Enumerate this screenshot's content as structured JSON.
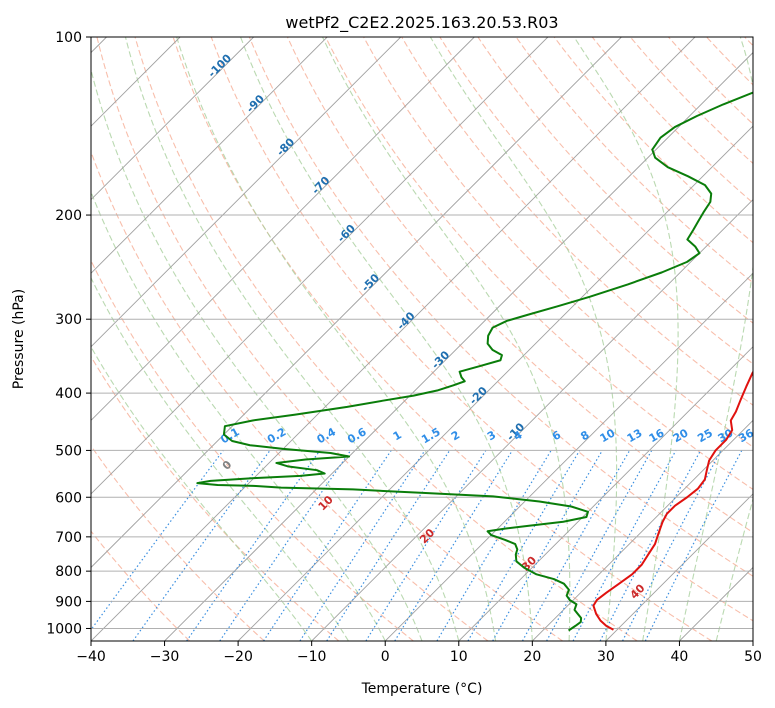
{
  "chart_data": {
    "type": "line",
    "title": "wetPf2_C2E2.2025.163.20.53.R03",
    "xlabel": "Temperature (°C)",
    "ylabel": "Pressure (hPa)",
    "xlim": [
      -40,
      50
    ],
    "ylim": [
      1050,
      100
    ],
    "y_scale": "log",
    "grid": true,
    "x_ticks": [
      "−40",
      "−30",
      "−20",
      "−10",
      "0",
      "10",
      "20",
      "30",
      "40",
      "50"
    ],
    "y_ticks": [
      "100",
      "200",
      "300",
      "400",
      "500",
      "600",
      "700",
      "800",
      "900",
      "1000"
    ],
    "x_tick_values": [
      -40,
      -30,
      -20,
      -10,
      0,
      10,
      20,
      30,
      40,
      50
    ],
    "y_tick_values": [
      100,
      200,
      300,
      400,
      500,
      600,
      700,
      800,
      900,
      1000
    ],
    "skew_deg": 45,
    "colors": {
      "temperature": "#e0120f",
      "dewpoint": "#0a7d0a",
      "isotherm": "#a0a0a0",
      "dry_adiabat": "#f5a88f",
      "moist_adiabat": "#a9cf9e",
      "mixing_ratio": "#3b8fe0",
      "isotherm_label": "#1f6fb0",
      "dry_adiabat_label": "#cc2a2a",
      "mixing_label": "#2f8ee8",
      "zero_label": "#808080"
    },
    "series": [
      {
        "key": "temperature",
        "points": [
          [
            29.5,
            1005
          ],
          [
            28.0,
            990
          ],
          [
            26.5,
            970
          ],
          [
            25.0,
            945
          ],
          [
            23.5,
            915
          ],
          [
            23.2,
            895
          ],
          [
            23.5,
            870
          ],
          [
            24.0,
            840
          ],
          [
            24.5,
            810
          ],
          [
            24.5,
            780
          ],
          [
            24.0,
            750
          ],
          [
            23.5,
            720
          ],
          [
            22.5,
            690
          ],
          [
            21.5,
            660
          ],
          [
            21.0,
            640
          ],
          [
            21.0,
            620
          ],
          [
            21.5,
            600
          ],
          [
            21.8,
            580
          ],
          [
            21.5,
            560
          ],
          [
            20.5,
            540
          ],
          [
            19.5,
            520
          ],
          [
            19.0,
            500
          ],
          [
            19.0,
            480
          ],
          [
            18.5,
            462
          ],
          [
            17.0,
            445
          ],
          [
            16.5,
            430
          ],
          [
            15.5,
            410
          ],
          [
            14.5,
            390
          ],
          [
            13.5,
            370
          ],
          [
            13.0,
            355
          ],
          [
            12.5,
            340
          ],
          [
            11.5,
            320
          ],
          [
            10.0,
            300
          ],
          [
            8.5,
            280
          ],
          [
            6.5,
            260
          ],
          [
            4.5,
            240
          ],
          [
            2.5,
            220
          ],
          [
            1.0,
            200
          ],
          [
            -0.5,
            185
          ],
          [
            -1.5,
            175
          ],
          [
            -2.5,
            165
          ],
          [
            -3.0,
            160
          ],
          [
            -3.0,
            155
          ],
          [
            -3.0,
            150
          ],
          [
            -3.5,
            142
          ],
          [
            -4.5,
            135
          ],
          [
            -6.0,
            125
          ],
          [
            -7.5,
            115
          ],
          [
            -9.0,
            108
          ],
          [
            -10.0,
            104
          ],
          [
            -10.5,
            100
          ]
        ]
      },
      {
        "key": "dewpoint",
        "points": [
          [
            23.5,
            1008
          ],
          [
            23.8,
            990
          ],
          [
            24.0,
            975
          ],
          [
            23.5,
            960
          ],
          [
            22.5,
            945
          ],
          [
            21.5,
            930
          ],
          [
            21.0,
            910
          ],
          [
            19.5,
            895
          ],
          [
            18.5,
            880
          ],
          [
            18.0,
            860
          ],
          [
            16.5,
            840
          ],
          [
            14.5,
            825
          ],
          [
            11.5,
            810
          ],
          [
            9.0,
            790
          ],
          [
            7.0,
            770
          ],
          [
            6.0,
            750
          ],
          [
            5.5,
            735
          ],
          [
            4.5,
            720
          ],
          [
            2.5,
            708
          ],
          [
            0.0,
            695
          ],
          [
            -1.0,
            685
          ],
          [
            1.0,
            678
          ],
          [
            4.0,
            670
          ],
          [
            8.0,
            660
          ],
          [
            10.5,
            648
          ],
          [
            10.0,
            635
          ],
          [
            7.0,
            622
          ],
          [
            2.0,
            610
          ],
          [
            -5.0,
            598
          ],
          [
            -15.0,
            590
          ],
          [
            -25.0,
            582
          ],
          [
            -35.0,
            578
          ],
          [
            -39.0,
            574
          ],
          [
            -44.0,
            572
          ],
          [
            -47.0,
            568
          ],
          [
            -45.5,
            563
          ],
          [
            -40.0,
            557
          ],
          [
            -34.0,
            552
          ],
          [
            -31.0,
            547
          ],
          [
            -32.5,
            540
          ],
          [
            -37.0,
            532
          ],
          [
            -39.0,
            525
          ],
          [
            -35.5,
            518
          ],
          [
            -30.0,
            512
          ],
          [
            -33.0,
            505
          ],
          [
            -40.0,
            497
          ],
          [
            -45.0,
            490
          ],
          [
            -48.0,
            482
          ],
          [
            -50.0,
            470
          ],
          [
            -51.0,
            455
          ],
          [
            -48.0,
            445
          ],
          [
            -43.0,
            435
          ],
          [
            -37.0,
            422
          ],
          [
            -33.0,
            412
          ],
          [
            -29.5,
            404
          ],
          [
            -27.0,
            396
          ],
          [
            -25.5,
            388
          ],
          [
            -24.5,
            382
          ],
          [
            -25.5,
            376
          ],
          [
            -26.5,
            368
          ],
          [
            -24.5,
            360
          ],
          [
            -22.5,
            352
          ],
          [
            -23.0,
            345
          ],
          [
            -25.0,
            338
          ],
          [
            -26.5,
            330
          ],
          [
            -27.5,
            320
          ],
          [
            -28.0,
            310
          ],
          [
            -27.0,
            302
          ],
          [
            -25.0,
            295
          ],
          [
            -22.0,
            285
          ],
          [
            -19.0,
            275
          ],
          [
            -15.5,
            262
          ],
          [
            -12.5,
            250
          ],
          [
            -10.5,
            240
          ],
          [
            -10.0,
            232
          ],
          [
            -11.5,
            226
          ],
          [
            -13.5,
            220
          ],
          [
            -14.0,
            212
          ],
          [
            -14.5,
            205
          ],
          [
            -15.0,
            198
          ],
          [
            -15.5,
            190
          ],
          [
            -16.5,
            184
          ],
          [
            -18.5,
            178
          ],
          [
            -22.0,
            172
          ],
          [
            -26.0,
            166
          ],
          [
            -29.0,
            160
          ],
          [
            -30.5,
            155
          ],
          [
            -31.0,
            148
          ],
          [
            -30.5,
            142
          ],
          [
            -29.0,
            136
          ],
          [
            -27.0,
            130
          ],
          [
            -24.5,
            124
          ],
          [
            -21.5,
            117
          ],
          [
            -18.5,
            111
          ],
          [
            -15.5,
            105
          ],
          [
            -13.5,
            101
          ],
          [
            -12.5,
            99
          ]
        ]
      }
    ],
    "isotherm_labels": [
      "-100",
      "-90",
      "-80",
      "-70",
      "-60",
      "-50",
      "-40",
      "-30",
      "-20",
      "-10"
    ],
    "isotherm_label_values": [
      -100,
      -90,
      -80,
      -70,
      -60,
      -50,
      -40,
      -30,
      -20,
      -10
    ],
    "isotherm_label_pressures": [
      113,
      131,
      155,
      180,
      217,
      263,
      305,
      355,
      408,
      470
    ],
    "dry_adiabat_labels": [
      "0",
      "10",
      "20",
      "30",
      "40"
    ],
    "dry_adiabat_label_values": [
      0,
      10,
      20,
      30,
      40
    ],
    "dry_adiabat_label_pressures": [
      535,
      620,
      705,
      785,
      875
    ],
    "mixing_ratio_labels": [
      "0.1",
      "0.2",
      "0.4",
      "0.6",
      "1",
      "1.5",
      "2",
      "3",
      "4",
      "6",
      "8",
      "10",
      "13",
      "16",
      "20",
      "25",
      "30",
      "36"
    ],
    "mixing_ratio_values": [
      0.1,
      0.2,
      0.4,
      0.6,
      1,
      1.5,
      2,
      3,
      4,
      6,
      8,
      10,
      13,
      16,
      20,
      25,
      30,
      36
    ],
    "mixing_ratio_label_pressure": 478
  }
}
